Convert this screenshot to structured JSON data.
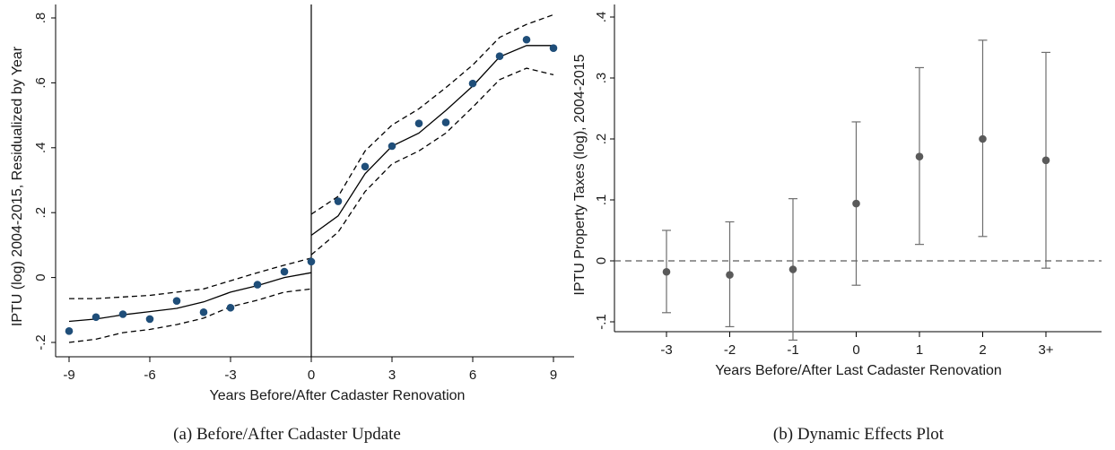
{
  "chart_data": [
    {
      "type": "scatter",
      "caption": "(a)  Before/After Cadaster Update",
      "xlabel": "Years Before/After Cadaster Renovation",
      "ylabel": "IPTU (log) 2004-2015, Residualized by Year",
      "xlim": [
        -9,
        9
      ],
      "ylim": [
        -0.2,
        0.8
      ],
      "x_ticks": [
        "-9",
        "-6",
        "-3",
        "0",
        "3",
        "6",
        "9"
      ],
      "x_tick_values": [
        -9,
        -6,
        -3,
        0,
        3,
        6,
        9
      ],
      "y_ticks": [
        "-.2",
        "0",
        ".2",
        ".4",
        ".6",
        ".8"
      ],
      "y_tick_values": [
        -0.2,
        0,
        0.2,
        0.4,
        0.6,
        0.8
      ],
      "points": {
        "x": [
          -9,
          -8,
          -7,
          -6,
          -5,
          -4,
          -3,
          -2,
          -1,
          0,
          1,
          2,
          3,
          4,
          5,
          6,
          7,
          8,
          9
        ],
        "y": [
          -0.165,
          -0.122,
          -0.113,
          -0.128,
          -0.072,
          -0.107,
          -0.093,
          -0.022,
          0.018,
          0.049,
          0.235,
          0.342,
          0.405,
          0.475,
          0.478,
          0.598,
          0.682,
          0.733,
          0.707
        ]
      },
      "fit_left": {
        "x": [
          -9,
          -8,
          -7,
          -6,
          -5,
          -4,
          -3,
          -2,
          -1,
          0
        ],
        "y": [
          -0.135,
          -0.128,
          -0.115,
          -0.105,
          -0.095,
          -0.075,
          -0.045,
          -0.025,
          0.0,
          0.015
        ],
        "upper": [
          -0.065,
          -0.065,
          -0.06,
          -0.055,
          -0.045,
          -0.035,
          -0.01,
          0.015,
          0.038,
          0.06
        ],
        "lower": [
          -0.2,
          -0.19,
          -0.17,
          -0.16,
          -0.145,
          -0.125,
          -0.09,
          -0.07,
          -0.045,
          -0.035
        ]
      },
      "fit_right": {
        "x": [
          0,
          1,
          2,
          3,
          4,
          5,
          6,
          7,
          8,
          9
        ],
        "y": [
          0.13,
          0.19,
          0.32,
          0.405,
          0.445,
          0.515,
          0.59,
          0.68,
          0.715,
          0.715
        ],
        "upper": [
          0.195,
          0.25,
          0.39,
          0.47,
          0.52,
          0.585,
          0.655,
          0.74,
          0.78,
          0.81
        ],
        "lower": [
          0.07,
          0.14,
          0.265,
          0.35,
          0.39,
          0.445,
          0.525,
          0.61,
          0.645,
          0.625
        ]
      },
      "vline_x": 0,
      "colors": {
        "points": "#1f4e79",
        "lines": "#000000"
      }
    },
    {
      "type": "scatter",
      "caption": "(b)  Dynamic Effects Plot",
      "xlabel": "Years Before/After Last Cadaster Renovation",
      "ylabel": "IPTU Property Taxes (log), 2004-2015",
      "categories": [
        "-3",
        "-2",
        "-1",
        "0",
        "1",
        "2",
        "3+"
      ],
      "ylim": [
        -0.15,
        0.4
      ],
      "y_ticks": [
        "-.1",
        "0",
        ".1",
        ".2",
        ".3",
        ".4"
      ],
      "y_tick_values": [
        -0.1,
        0,
        0.1,
        0.2,
        0.3,
        0.4
      ],
      "series": [
        {
          "estimates": [
            -0.018,
            -0.023,
            -0.014,
            0.094,
            0.171,
            0.2,
            0.165
          ],
          "ci_low": [
            -0.085,
            -0.108,
            -0.13,
            -0.04,
            0.027,
            0.04,
            -0.012
          ],
          "ci_high": [
            0.05,
            0.064,
            0.102,
            0.228,
            0.317,
            0.362,
            0.342
          ]
        }
      ],
      "hline_y": 0,
      "colors": {
        "points": "#5a5a5a",
        "bars": "#6e6e6e",
        "zero": "#5a5a5a"
      }
    }
  ]
}
